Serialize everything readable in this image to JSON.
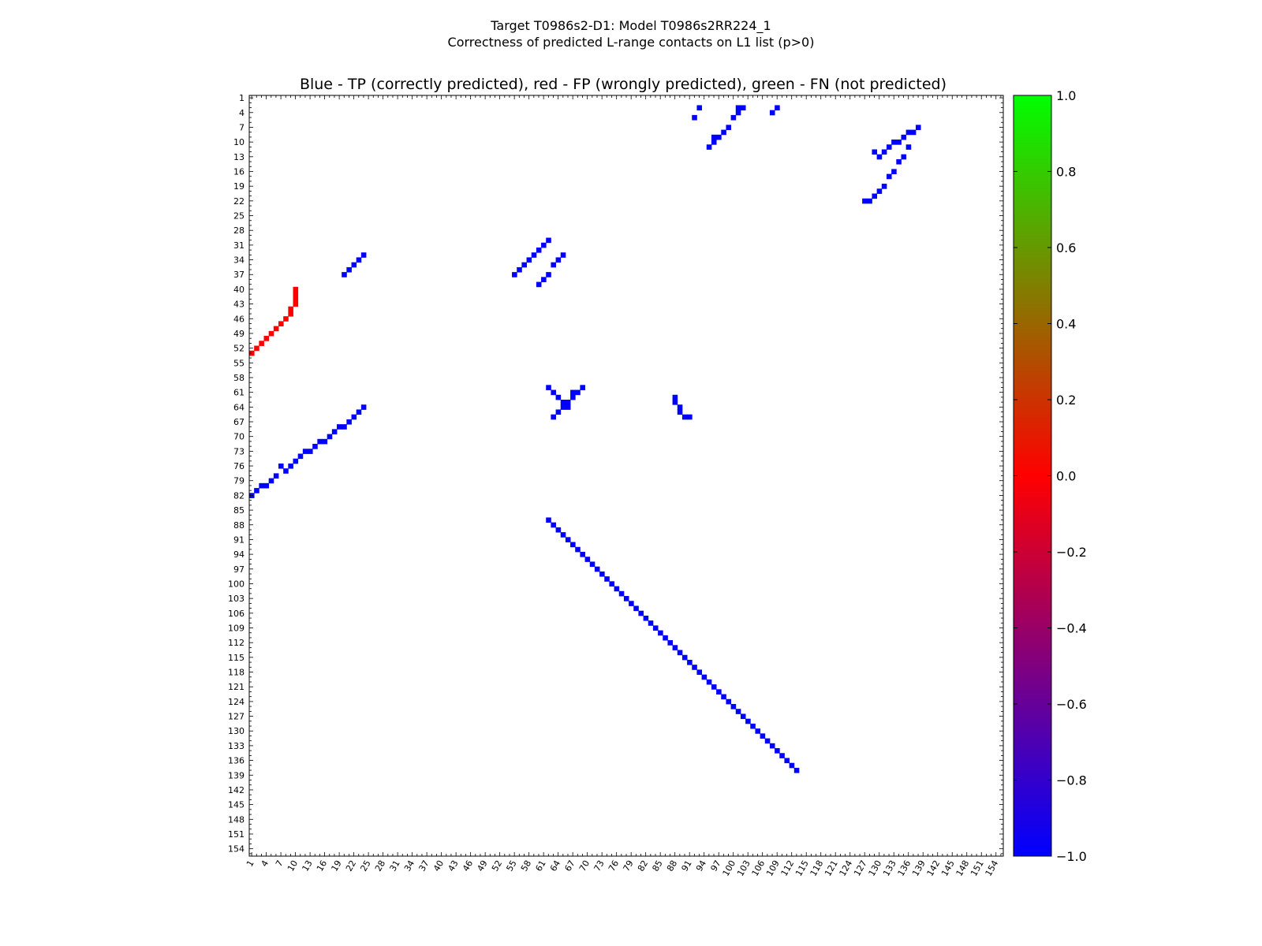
{
  "page": {
    "title_line1": "Target T0986s2-D1: Model T0986s2RR224_1",
    "title_line2": "Correctness of predicted L-range contacts on L1 list (p>0)"
  },
  "chart_data": {
    "type": "heatmap",
    "title": "Blue - TP (correctly predicted), red - FP (wrongly predicted), green - FN (not predicted)",
    "n_residues": 155,
    "tick_labels": [
      "1",
      "4",
      "7",
      "10",
      "13",
      "16",
      "19",
      "22",
      "25",
      "28",
      "31",
      "34",
      "37",
      "40",
      "43",
      "46",
      "49",
      "52",
      "55",
      "58",
      "61",
      "64",
      "67",
      "70",
      "73",
      "76",
      "79",
      "82",
      "85",
      "88",
      "91",
      "94",
      "97",
      "100",
      "103",
      "106",
      "109",
      "112",
      "115",
      "118",
      "121",
      "124",
      "127",
      "130",
      "133",
      "136",
      "139",
      "142",
      "145",
      "148",
      "151",
      "154"
    ],
    "colorbar": {
      "min": -1.0,
      "max": 1.0,
      "ticks": [
        "1.0",
        "0.8",
        "0.6",
        "0.4",
        "0.2",
        "0.0",
        "−0.2",
        "−0.4",
        "−0.6",
        "−0.8",
        "−1.0"
      ],
      "colors": [
        "#0000ff",
        "#ff0000",
        "#00ff00"
      ]
    },
    "colors": {
      "TP": "#0000ff",
      "FP": "#ff0000",
      "FN": "#33cc33"
    },
    "contacts": {
      "TP": [
        [
          3,
          101
        ],
        [
          3,
          102
        ],
        [
          4,
          101
        ],
        [
          5,
          100
        ],
        [
          7,
          99
        ],
        [
          8,
          98
        ],
        [
          9,
          97
        ],
        [
          9,
          96
        ],
        [
          10,
          96
        ],
        [
          11,
          95
        ],
        [
          7,
          138
        ],
        [
          8,
          137
        ],
        [
          8,
          136
        ],
        [
          9,
          135
        ],
        [
          10,
          134
        ],
        [
          10,
          133
        ],
        [
          11,
          132
        ],
        [
          12,
          131
        ],
        [
          13,
          130
        ],
        [
          12,
          129
        ],
        [
          3,
          109
        ],
        [
          4,
          108
        ],
        [
          3,
          93
        ],
        [
          5,
          92
        ],
        [
          60,
          69
        ],
        [
          61,
          68
        ],
        [
          62,
          67
        ],
        [
          63,
          66
        ],
        [
          64,
          65
        ],
        [
          65,
          64
        ],
        [
          66,
          63
        ],
        [
          61,
          67
        ],
        [
          11,
          136
        ],
        [
          13,
          135
        ],
        [
          14,
          134
        ],
        [
          16,
          133
        ],
        [
          17,
          132
        ],
        [
          19,
          131
        ],
        [
          20,
          130
        ],
        [
          21,
          129
        ],
        [
          22,
          128
        ],
        [
          22,
          127
        ],
        [
          33,
          24
        ],
        [
          34,
          23
        ],
        [
          35,
          22
        ],
        [
          36,
          21
        ],
        [
          37,
          20
        ],
        [
          30,
          62
        ],
        [
          31,
          61
        ],
        [
          32,
          60
        ],
        [
          33,
          59
        ],
        [
          34,
          58
        ],
        [
          35,
          57
        ],
        [
          36,
          56
        ],
        [
          37,
          55
        ],
        [
          33,
          65
        ],
        [
          34,
          64
        ],
        [
          35,
          63
        ],
        [
          37,
          62
        ],
        [
          38,
          61
        ],
        [
          39,
          60
        ],
        [
          64,
          24
        ],
        [
          65,
          23
        ],
        [
          66,
          22
        ],
        [
          67,
          21
        ],
        [
          68,
          20
        ],
        [
          68,
          19
        ],
        [
          69,
          18
        ],
        [
          70,
          17
        ],
        [
          71,
          16
        ],
        [
          71,
          15
        ],
        [
          72,
          14
        ],
        [
          73,
          13
        ],
        [
          73,
          12
        ],
        [
          74,
          11
        ],
        [
          75,
          10
        ],
        [
          76,
          9
        ],
        [
          77,
          8
        ],
        [
          76,
          7
        ],
        [
          78,
          6
        ],
        [
          79,
          5
        ],
        [
          80,
          4
        ],
        [
          80,
          3
        ],
        [
          81,
          2
        ],
        [
          82,
          1
        ],
        [
          62,
          88
        ],
        [
          63,
          88
        ],
        [
          64,
          89
        ],
        [
          65,
          89
        ],
        [
          66,
          90
        ],
        [
          66,
          91
        ],
        [
          60,
          62
        ],
        [
          61,
          63
        ],
        [
          62,
          64
        ],
        [
          63,
          65
        ],
        [
          64,
          66
        ],
        [
          87,
          62
        ],
        [
          88,
          63
        ],
        [
          89,
          64
        ],
        [
          90,
          65
        ],
        [
          91,
          66
        ],
        [
          92,
          67
        ],
        [
          93,
          68
        ],
        [
          94,
          69
        ],
        [
          95,
          70
        ],
        [
          96,
          71
        ],
        [
          97,
          72
        ],
        [
          98,
          73
        ],
        [
          99,
          74
        ],
        [
          100,
          75
        ],
        [
          101,
          76
        ],
        [
          102,
          77
        ],
        [
          103,
          78
        ],
        [
          104,
          79
        ],
        [
          105,
          80
        ],
        [
          106,
          81
        ],
        [
          107,
          82
        ],
        [
          108,
          83
        ],
        [
          109,
          84
        ],
        [
          110,
          85
        ],
        [
          111,
          86
        ],
        [
          112,
          87
        ],
        [
          113,
          88
        ],
        [
          114,
          89
        ],
        [
          115,
          90
        ],
        [
          116,
          91
        ],
        [
          117,
          92
        ],
        [
          118,
          93
        ],
        [
          119,
          94
        ],
        [
          120,
          95
        ],
        [
          121,
          96
        ],
        [
          122,
          97
        ],
        [
          123,
          98
        ],
        [
          124,
          99
        ],
        [
          125,
          100
        ],
        [
          126,
          101
        ],
        [
          127,
          102
        ],
        [
          128,
          103
        ],
        [
          129,
          104
        ],
        [
          130,
          105
        ],
        [
          131,
          106
        ],
        [
          132,
          107
        ],
        [
          133,
          108
        ],
        [
          134,
          109
        ],
        [
          135,
          110
        ],
        [
          136,
          111
        ],
        [
          137,
          112
        ],
        [
          138,
          113
        ]
      ],
      "FP": [
        [
          40,
          10
        ],
        [
          41,
          10
        ],
        [
          42,
          10
        ],
        [
          43,
          10
        ],
        [
          44,
          9
        ],
        [
          45,
          9
        ],
        [
          46,
          8
        ],
        [
          47,
          7
        ],
        [
          48,
          6
        ],
        [
          49,
          5
        ],
        [
          50,
          4
        ],
        [
          51,
          3
        ],
        [
          52,
          2
        ],
        [
          53,
          1
        ]
      ],
      "FN": []
    }
  }
}
